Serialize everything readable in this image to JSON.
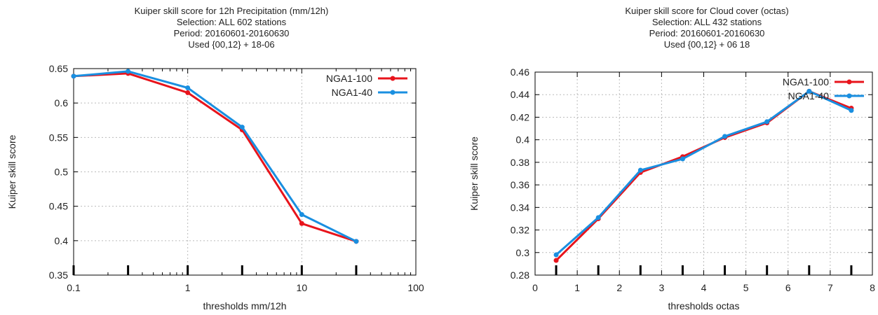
{
  "chart_data": [
    {
      "type": "line",
      "title": "Kuiper skill score  for 12h Precipitation (mm/12h)",
      "subtitle_lines": [
        "Selection: ALL    602 stations",
        "Period: 20160601-20160630",
        "Used {00,12} + 18-06"
      ],
      "xlabel": "thresholds mm/12h",
      "ylabel": "Kuiper skill score",
      "x_scale": "log",
      "xlim": [
        0.1,
        100
      ],
      "ylim": [
        0.35,
        0.65
      ],
      "x_ticks": [
        0.1,
        1,
        10,
        100
      ],
      "x_tick_labels": [
        "0.1",
        "1",
        "10",
        "100"
      ],
      "y_ticks": [
        0.35,
        0.4,
        0.45,
        0.5,
        0.55,
        0.6,
        0.65
      ],
      "y_tick_labels": [
        "0.35",
        "0.4",
        "0.45",
        "0.5",
        "0.55",
        "0.6",
        "0.65"
      ],
      "grid": true,
      "legend_position": "top-right",
      "x": [
        0.1,
        0.3,
        1,
        3,
        10,
        30
      ],
      "series": [
        {
          "name": "NGA1-100",
          "color": "#e8141c",
          "values": [
            0.639,
            0.643,
            0.615,
            0.561,
            0.425,
            0.399
          ]
        },
        {
          "name": "NGA1-40",
          "color": "#1a8fe0",
          "values": [
            0.639,
            0.646,
            0.622,
            0.565,
            0.438,
            0.399
          ]
        }
      ]
    },
    {
      "type": "line",
      "title": "Kuiper skill score  for Cloud cover (octas)",
      "subtitle_lines": [
        "Selection: ALL    432 stations",
        "Period: 20160601-20160630",
        "Used {00,12} + 06 18"
      ],
      "xlabel": "thresholds octas",
      "ylabel": "Kuiper skill score",
      "x_scale": "linear",
      "xlim": [
        0,
        8
      ],
      "ylim": [
        0.28,
        0.46
      ],
      "x_ticks": [
        0,
        1,
        2,
        3,
        4,
        5,
        6,
        7,
        8
      ],
      "x_tick_labels": [
        "0",
        "1",
        "2",
        "3",
        "4",
        "5",
        "6",
        "7",
        "8"
      ],
      "y_ticks": [
        0.28,
        0.3,
        0.32,
        0.34,
        0.36,
        0.38,
        0.4,
        0.42,
        0.44,
        0.46
      ],
      "y_tick_labels": [
        "0.28",
        "0.3",
        "0.32",
        "0.34",
        "0.36",
        "0.38",
        "0.4",
        "0.42",
        "0.44",
        "0.46"
      ],
      "grid": true,
      "legend_position": "top-right",
      "x": [
        0.5,
        1.5,
        2.5,
        3.5,
        4.5,
        5.5,
        6.5,
        7.5
      ],
      "series": [
        {
          "name": "NGA1-100",
          "color": "#e8141c",
          "values": [
            0.293,
            0.33,
            0.371,
            0.385,
            0.402,
            0.415,
            0.443,
            0.428
          ]
        },
        {
          "name": "NGA1-40",
          "color": "#1a8fe0",
          "values": [
            0.298,
            0.331,
            0.373,
            0.383,
            0.403,
            0.416,
            0.443,
            0.426
          ]
        }
      ]
    }
  ]
}
